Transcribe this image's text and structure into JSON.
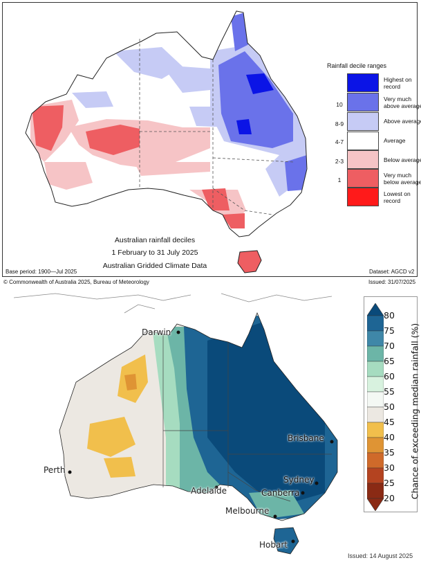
{
  "top_map": {
    "legend": {
      "title": "Rainfall decile ranges",
      "items": [
        {
          "range": "",
          "label": "Highest on record",
          "color": "#0b14e6"
        },
        {
          "range": "10",
          "label": "Very much above average",
          "color": "#6a72ea"
        },
        {
          "range": "8-9",
          "label": "Above average",
          "color": "#c6cbf5"
        },
        {
          "range": "4-7",
          "label": "Average",
          "color": "#ffffff"
        },
        {
          "range": "2-3",
          "label": "Below average",
          "color": "#f6c4c6"
        },
        {
          "range": "1",
          "label": "Very much below average",
          "color": "#ee5e62"
        },
        {
          "range": "",
          "label": "Lowest on record",
          "color": "#ff1a1a"
        }
      ]
    },
    "title_line1": "Australian rainfall deciles",
    "title_line2": "1 February to 31 July 2025",
    "title_line3": "Australian Gridded Climate Data",
    "base_period": "Base period: 1900—Jul 2025",
    "dataset": "Dataset: AGCD v2",
    "copyright": "© Commonwealth of Australia 2025, Bureau of Meteorology",
    "issued": "Issued: 31/07/2025"
  },
  "bottom_map": {
    "colorbar": {
      "label": "Chance of exceeding median rainfall (%)",
      "ticks": [
        "80",
        "75",
        "70",
        "65",
        "60",
        "55",
        "50",
        "45",
        "40",
        "35",
        "30",
        "25",
        "20"
      ],
      "colors": [
        "#0a4a7a",
        "#1e6594",
        "#3f87a8",
        "#6cb5a7",
        "#a6dcc0",
        "#d8f2df",
        "#f4f8f4",
        "#ece8e2",
        "#f1bf4c",
        "#df9434",
        "#cf6a2a",
        "#b44320",
        "#8a2a14"
      ]
    },
    "cities": {
      "darwin": "Darwin",
      "perth": "Perth",
      "adelaide": "Adelaide",
      "melbourne": "Melbourne",
      "hobart": "Hobart",
      "brisbane": "Brisbane",
      "sydney": "Sydney",
      "canberra": "Canberra"
    },
    "issued": "Issued: 14 August 2025"
  }
}
